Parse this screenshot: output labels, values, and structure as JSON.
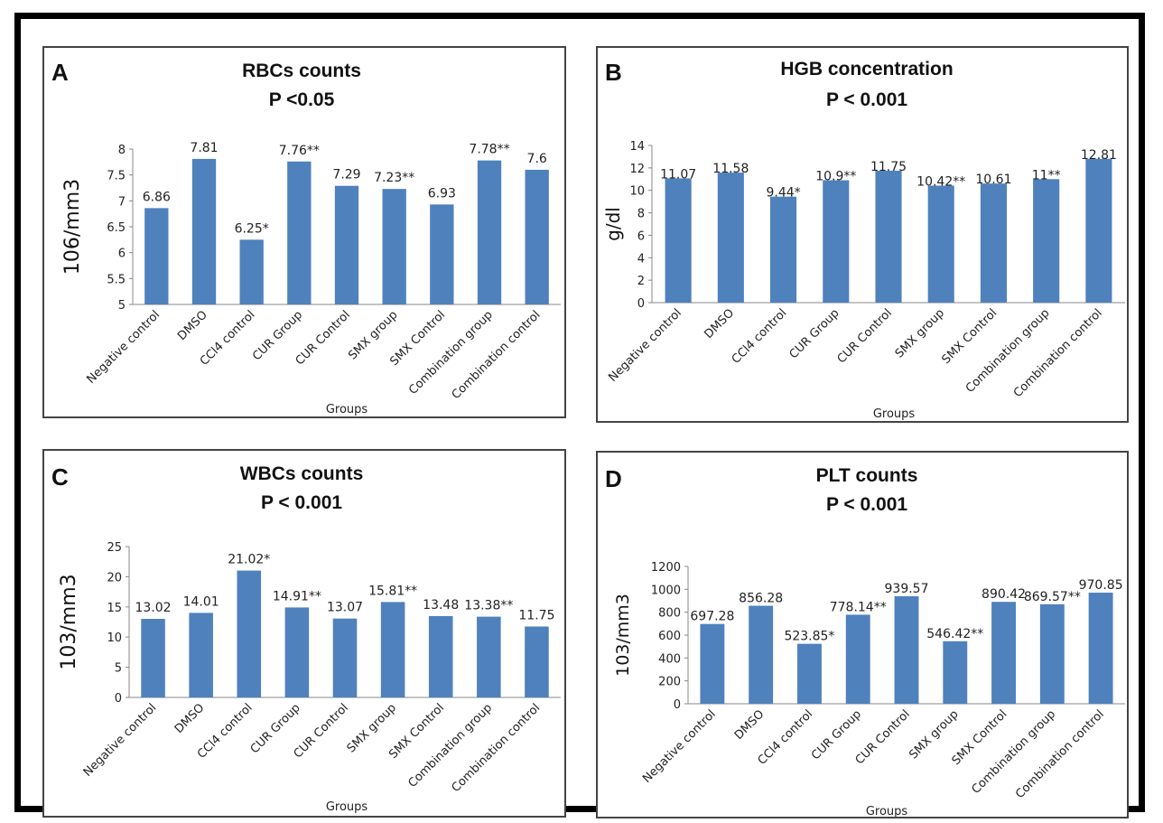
{
  "chart_data": [
    {
      "type": "bar",
      "panel_letter": "A",
      "title": "RBCs counts",
      "subtitle": "P <0.05",
      "xlabel": "Groups",
      "ylabel": "106/mm3",
      "ylim": [
        5,
        8
      ],
      "yticks": [
        "5",
        "5.5",
        "6",
        "6.5",
        "7",
        "7.5",
        "8"
      ],
      "categories": [
        "Negative control",
        "DMSO",
        "CCl4 control",
        "CUR Group",
        "CUR Control",
        "SMX group",
        "SMX Control",
        "Combination group",
        "Combination control"
      ],
      "values": [
        6.86,
        7.81,
        6.25,
        7.76,
        7.29,
        7.23,
        6.93,
        7.78,
        7.6
      ],
      "labels": [
        "6.86",
        "7.81",
        "6.25*",
        "7.76**",
        "7.29",
        "7.23**",
        "6.93",
        "7.78**",
        "7.6"
      ],
      "bar_color": "#4f81bd",
      "grid": false
    },
    {
      "type": "bar",
      "panel_letter": "B",
      "title": "HGB concentration",
      "subtitle": "P < 0.001",
      "xlabel": "Groups",
      "ylabel": "g/dl",
      "ylim": [
        0,
        14
      ],
      "yticks": [
        "0",
        "2",
        "4",
        "6",
        "8",
        "10",
        "12",
        "14"
      ],
      "categories": [
        "Negative control",
        "DMSO",
        "CCl4 control",
        "CUR Group",
        "CUR Control",
        "SMX group",
        "SMX Control",
        "Combination group",
        "Combination control"
      ],
      "values": [
        11.07,
        11.58,
        9.44,
        10.9,
        11.75,
        10.42,
        10.61,
        11,
        12.81
      ],
      "labels": [
        "11.07",
        "11.58",
        "9.44*",
        "10.9**",
        "11.75",
        "10.42**",
        "10.61",
        "11**",
        "12.81"
      ],
      "bar_color": "#4f81bd",
      "grid": false
    },
    {
      "type": "bar",
      "panel_letter": "C",
      "title": "WBCs counts",
      "subtitle": "P < 0.001",
      "xlabel": "Groups",
      "ylabel": "103/mm3",
      "ylim": [
        0,
        25
      ],
      "yticks": [
        "0",
        "5",
        "10",
        "15",
        "20",
        "25"
      ],
      "categories": [
        "Negative control",
        "DMSO",
        "CCl4 control",
        "CUR Group",
        "CUR Control",
        "SMX group",
        "SMX Control",
        "Combination group",
        "Combination control"
      ],
      "values": [
        13.02,
        14.01,
        21.02,
        14.91,
        13.07,
        15.81,
        13.48,
        13.38,
        11.75
      ],
      "labels": [
        "13.02",
        "14.01",
        "21.02*",
        "14.91**",
        "13.07",
        "15.81**",
        "13.48",
        "13.38**",
        "11.75"
      ],
      "bar_color": "#4f81bd",
      "grid": false
    },
    {
      "type": "bar",
      "panel_letter": "D",
      "title": "PLT counts",
      "subtitle": "P < 0.001",
      "xlabel": "Groups",
      "ylabel": "103/mm3",
      "ylim": [
        0,
        1200
      ],
      "yticks": [
        "0",
        "200",
        "400",
        "600",
        "800",
        "1000",
        "1200"
      ],
      "categories": [
        "Negative control",
        "DMSO",
        "CCl4 control",
        "CUR Group",
        "CUR Control",
        "SMX group",
        "SMX Control",
        "Combination group",
        "Combination control"
      ],
      "values": [
        697.28,
        856.28,
        523.85,
        778.14,
        939.57,
        546.42,
        890.42,
        869.57,
        970.85
      ],
      "labels": [
        "697.28",
        "856.28",
        "523.85*",
        "778.14**",
        "939.57",
        "546.42**",
        "890.42",
        "869.57**",
        "970.85"
      ],
      "bar_color": "#4f81bd",
      "grid": false
    }
  ]
}
